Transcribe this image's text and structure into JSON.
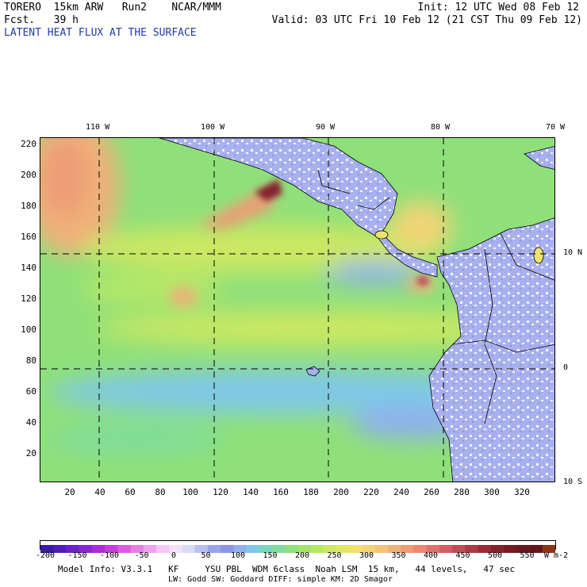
{
  "header": {
    "line1_left": "TORERO  15km ARW   Run2    NCAR/MMM",
    "line2_left": "Fcst.   39 h",
    "init": "Init: 12 UTC Wed 08 Feb 12",
    "valid": "Valid: 03 UTC Fri 10 Feb 12 (21 CST Thu 09 Feb 12)",
    "subtitle": "LATENT HEAT FLUX AT THE SURFACE",
    "subtitle_color": "#1e3ca8"
  },
  "map": {
    "longitude_labels": [
      "110 W",
      "100 W",
      "90 W",
      "80 W",
      "70 W"
    ],
    "latitude_labels": [
      "10 N",
      "0",
      "10 S"
    ],
    "y_ticks": [
      "220",
      "200",
      "180",
      "160",
      "140",
      "120",
      "100",
      "80",
      "60",
      "40",
      "20"
    ],
    "x_ticks": [
      "20",
      "40",
      "60",
      "80",
      "100",
      "120",
      "140",
      "160",
      "180",
      "200",
      "220",
      "240",
      "260",
      "280",
      "300",
      "320"
    ],
    "ocean_color": "#8fe07a",
    "land_color": "#a9b0ee"
  },
  "colorbar": {
    "labels": [
      "-200",
      "-150",
      "-100",
      "-50",
      "0",
      "50",
      "100",
      "150",
      "200",
      "250",
      "300",
      "350",
      "400",
      "450",
      "500",
      "550"
    ],
    "unit": "W m-2",
    "colors": [
      "#3a1aa0",
      "#4d1fb8",
      "#6a22c8",
      "#8a26d4",
      "#a82ed8",
      "#c43ede",
      "#d85ce2",
      "#e47ee6",
      "#eda3ee",
      "#f4c6f4",
      "#f6e2f6",
      "#d8dcf6",
      "#b8bff2",
      "#9ba2ec",
      "#8c94e4",
      "#8fb0ec",
      "#7fc8e6",
      "#79d4c0",
      "#7fdc9c",
      "#8fe07a",
      "#a2e46c",
      "#b6e866",
      "#cce862",
      "#e0e666",
      "#eee270",
      "#f2d476",
      "#f2c47a",
      "#f0b07a",
      "#ee9c76",
      "#ea8870",
      "#e0726a",
      "#d05e62",
      "#c04c56",
      "#ac3a48",
      "#982c3a",
      "#84222e",
      "#741a24",
      "#681820",
      "#60141c",
      "#8a3418"
    ]
  },
  "footer": {
    "line1": "Model Info: V3.3.1   KF     YSU PBL  WDM 6class  Noah LSM  15 km,   44 levels,   47 sec",
    "line2": "LW: Godd SW: Goddard DIFF: simple KM: 2D Smagor"
  }
}
